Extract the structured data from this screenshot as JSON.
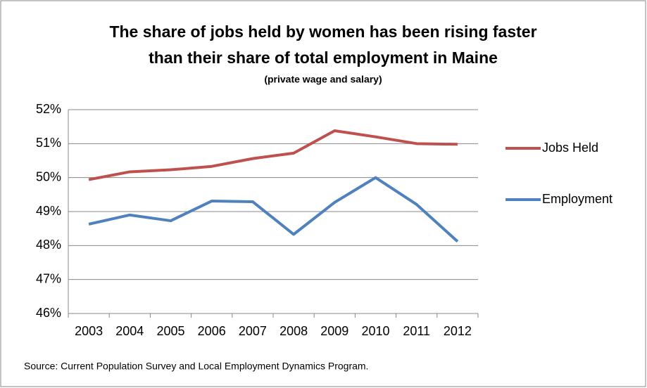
{
  "chart_data": {
    "type": "line",
    "title": [
      "The share of jobs held by women has been rising faster",
      "than their share of total employment in Maine"
    ],
    "subtitle": "(private wage and salary)",
    "source": "Source: Current Population Survey and Local Employment Dynamics Program.",
    "categories": [
      "2003",
      "2004",
      "2005",
      "2006",
      "2007",
      "2008",
      "2009",
      "2010",
      "2011",
      "2012"
    ],
    "series": [
      {
        "name": "Jobs Held",
        "color": "#c0504d",
        "values": [
          49.94,
          50.17,
          50.23,
          50.33,
          50.56,
          50.72,
          51.38,
          51.2,
          51.0,
          50.98
        ]
      },
      {
        "name": "Employment",
        "color": "#4f81bd",
        "values": [
          48.63,
          48.9,
          48.73,
          49.31,
          49.29,
          48.33,
          49.27,
          50.0,
          49.21,
          48.12
        ]
      }
    ],
    "ylim": [
      46,
      52
    ],
    "yticks": [
      {
        "value": 46,
        "label": "46%"
      },
      {
        "value": 47,
        "label": "47%"
      },
      {
        "value": 48,
        "label": "48%"
      },
      {
        "value": 49,
        "label": "49%"
      },
      {
        "value": 50,
        "label": "50%"
      },
      {
        "value": 51,
        "label": "51%"
      },
      {
        "value": 52,
        "label": "52%"
      }
    ],
    "grid": true,
    "legend": "right"
  }
}
